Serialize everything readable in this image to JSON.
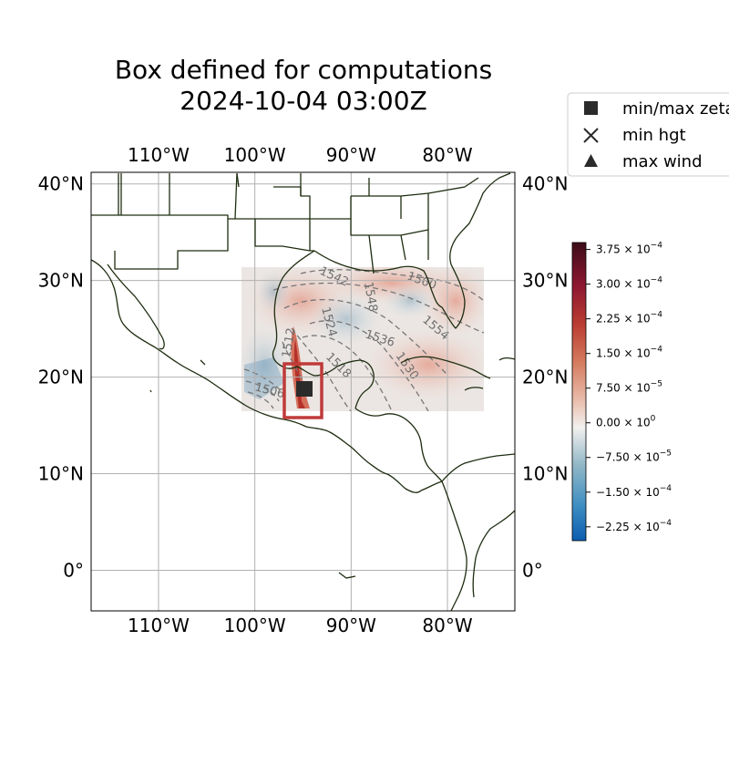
{
  "title": {
    "line1": "Box defined for computations",
    "line2": "2024-10-04 03:00Z"
  },
  "map": {
    "projection": "PlateCarree",
    "lon_range": [
      -117.0,
      -73.0
    ],
    "lat_range": [
      -4.2,
      41.2
    ],
    "gridlines": true,
    "x_ticks": [
      {
        "lon": -110,
        "label": "110°W"
      },
      {
        "lon": -100,
        "label": "100°W"
      },
      {
        "lon": -90,
        "label": "90°W"
      },
      {
        "lon": -80,
        "label": "80°W"
      }
    ],
    "y_ticks": [
      {
        "lat": 40,
        "label": "40°N"
      },
      {
        "lat": 30,
        "label": "30°N"
      },
      {
        "lat": 20,
        "label": "20°N"
      },
      {
        "lat": 10,
        "label": "10°N"
      },
      {
        "lat": 0,
        "label": "0°"
      }
    ],
    "data_domain": {
      "lon": [
        -101.5,
        -76.5
      ],
      "lat": [
        16.7,
        31.2
      ]
    },
    "computation_box": {
      "lon": [
        -97.0,
        -93.0
      ],
      "lat": [
        15.8,
        21.4
      ],
      "color": "#c03a3a"
    },
    "min_max_zeta_marker": {
      "lon": -94.8,
      "lat": 18.8
    },
    "contour_labels": [
      "1542",
      "1548",
      "1560",
      "1524",
      "1536",
      "1554",
      "1512",
      "1518",
      "1530",
      "1506"
    ],
    "coastline_color": "#1e2d10"
  },
  "colorbar": {
    "range": [
      -0.000255,
      0.00039
    ],
    "colormap": "balance",
    "ticks": [
      {
        "value": 0.000375,
        "mantissa": "3.75",
        "sign": "",
        "exp": "−4"
      },
      {
        "value": 0.0003,
        "mantissa": "3.00",
        "sign": "",
        "exp": "−4"
      },
      {
        "value": 0.000225,
        "mantissa": "2.25",
        "sign": "",
        "exp": "−4"
      },
      {
        "value": 0.00015,
        "mantissa": "1.50",
        "sign": "",
        "exp": "−4"
      },
      {
        "value": 7.5e-05,
        "mantissa": "7.50",
        "sign": "",
        "exp": "−5"
      },
      {
        "value": 0.0,
        "mantissa": "0.00",
        "sign": "",
        "exp": "0"
      },
      {
        "value": -7.5e-05,
        "mantissa": "7.50",
        "sign": "−",
        "exp": "−5"
      },
      {
        "value": -0.00015,
        "mantissa": "1.50",
        "sign": "−",
        "exp": "−4"
      },
      {
        "value": -0.000225,
        "mantissa": "2.25",
        "sign": "−",
        "exp": "−4"
      }
    ]
  },
  "legend": {
    "placement": "top-right",
    "items": [
      {
        "label": "min/max zeta",
        "marker": "square"
      },
      {
        "label": "min hgt",
        "marker": "x"
      },
      {
        "label": "max wind",
        "marker": "triangle"
      }
    ]
  }
}
